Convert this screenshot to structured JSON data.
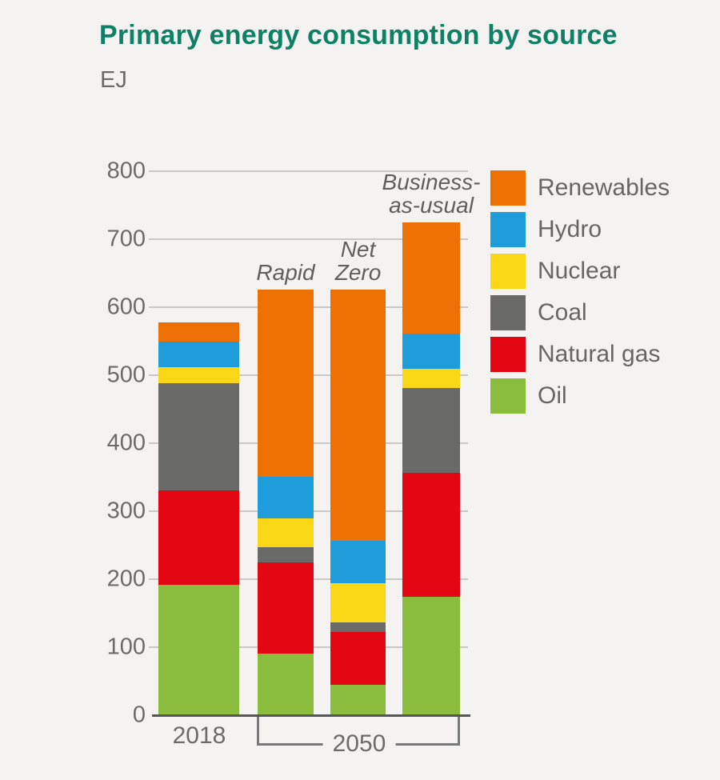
{
  "title": "Primary energy consumption by source",
  "unit_label": "EJ",
  "colors": {
    "title_teal": "#0e8065",
    "text_gray": "#6b6b6b",
    "gridline": "#c9c8c5",
    "axis": "#55565a",
    "background": "#f4f3f1"
  },
  "chart_data": {
    "type": "bar",
    "stacked": true,
    "title": "Primary energy consumption by source",
    "ylabel": "EJ",
    "xlabel": "",
    "ylim": [
      0,
      800
    ],
    "ytick_step": 100,
    "grid": true,
    "legend_position": "right",
    "categories": [
      {
        "key": "2018",
        "annotation_lines": [],
        "group": "2018"
      },
      {
        "key": "rapid",
        "annotation_lines": [
          "Rapid"
        ],
        "group": "2050"
      },
      {
        "key": "net-zero",
        "annotation_lines": [
          "Net",
          "Zero"
        ],
        "group": "2050"
      },
      {
        "key": "business-as-usual",
        "annotation_lines": [
          "Business-",
          "as-usual"
        ],
        "group": "2050"
      }
    ],
    "series": [
      {
        "name": "Oil",
        "color": "#8abd3e",
        "values": [
          190,
          90,
          43,
          173
        ]
      },
      {
        "name": "Natural gas",
        "color": "#e30613",
        "values": [
          139,
          134,
          78,
          182
        ]
      },
      {
        "name": "Coal",
        "color": "#6a6a69",
        "values": [
          158,
          22,
          14,
          125
        ]
      },
      {
        "name": "Nuclear",
        "color": "#f9d616",
        "values": [
          24,
          42,
          58,
          28
        ]
      },
      {
        "name": "Hydro",
        "color": "#1f9ddb",
        "values": [
          37,
          61,
          62,
          52
        ]
      },
      {
        "name": "Renewables",
        "color": "#ec7004",
        "values": [
          28,
          276,
          370,
          164
        ]
      }
    ],
    "legend_order_top_to_bottom": [
      "Renewables",
      "Hydro",
      "Nuclear",
      "Coal",
      "Natural gas",
      "Oil"
    ],
    "x_axis": {
      "label_2018": "2018",
      "label_2050": "2050"
    }
  }
}
